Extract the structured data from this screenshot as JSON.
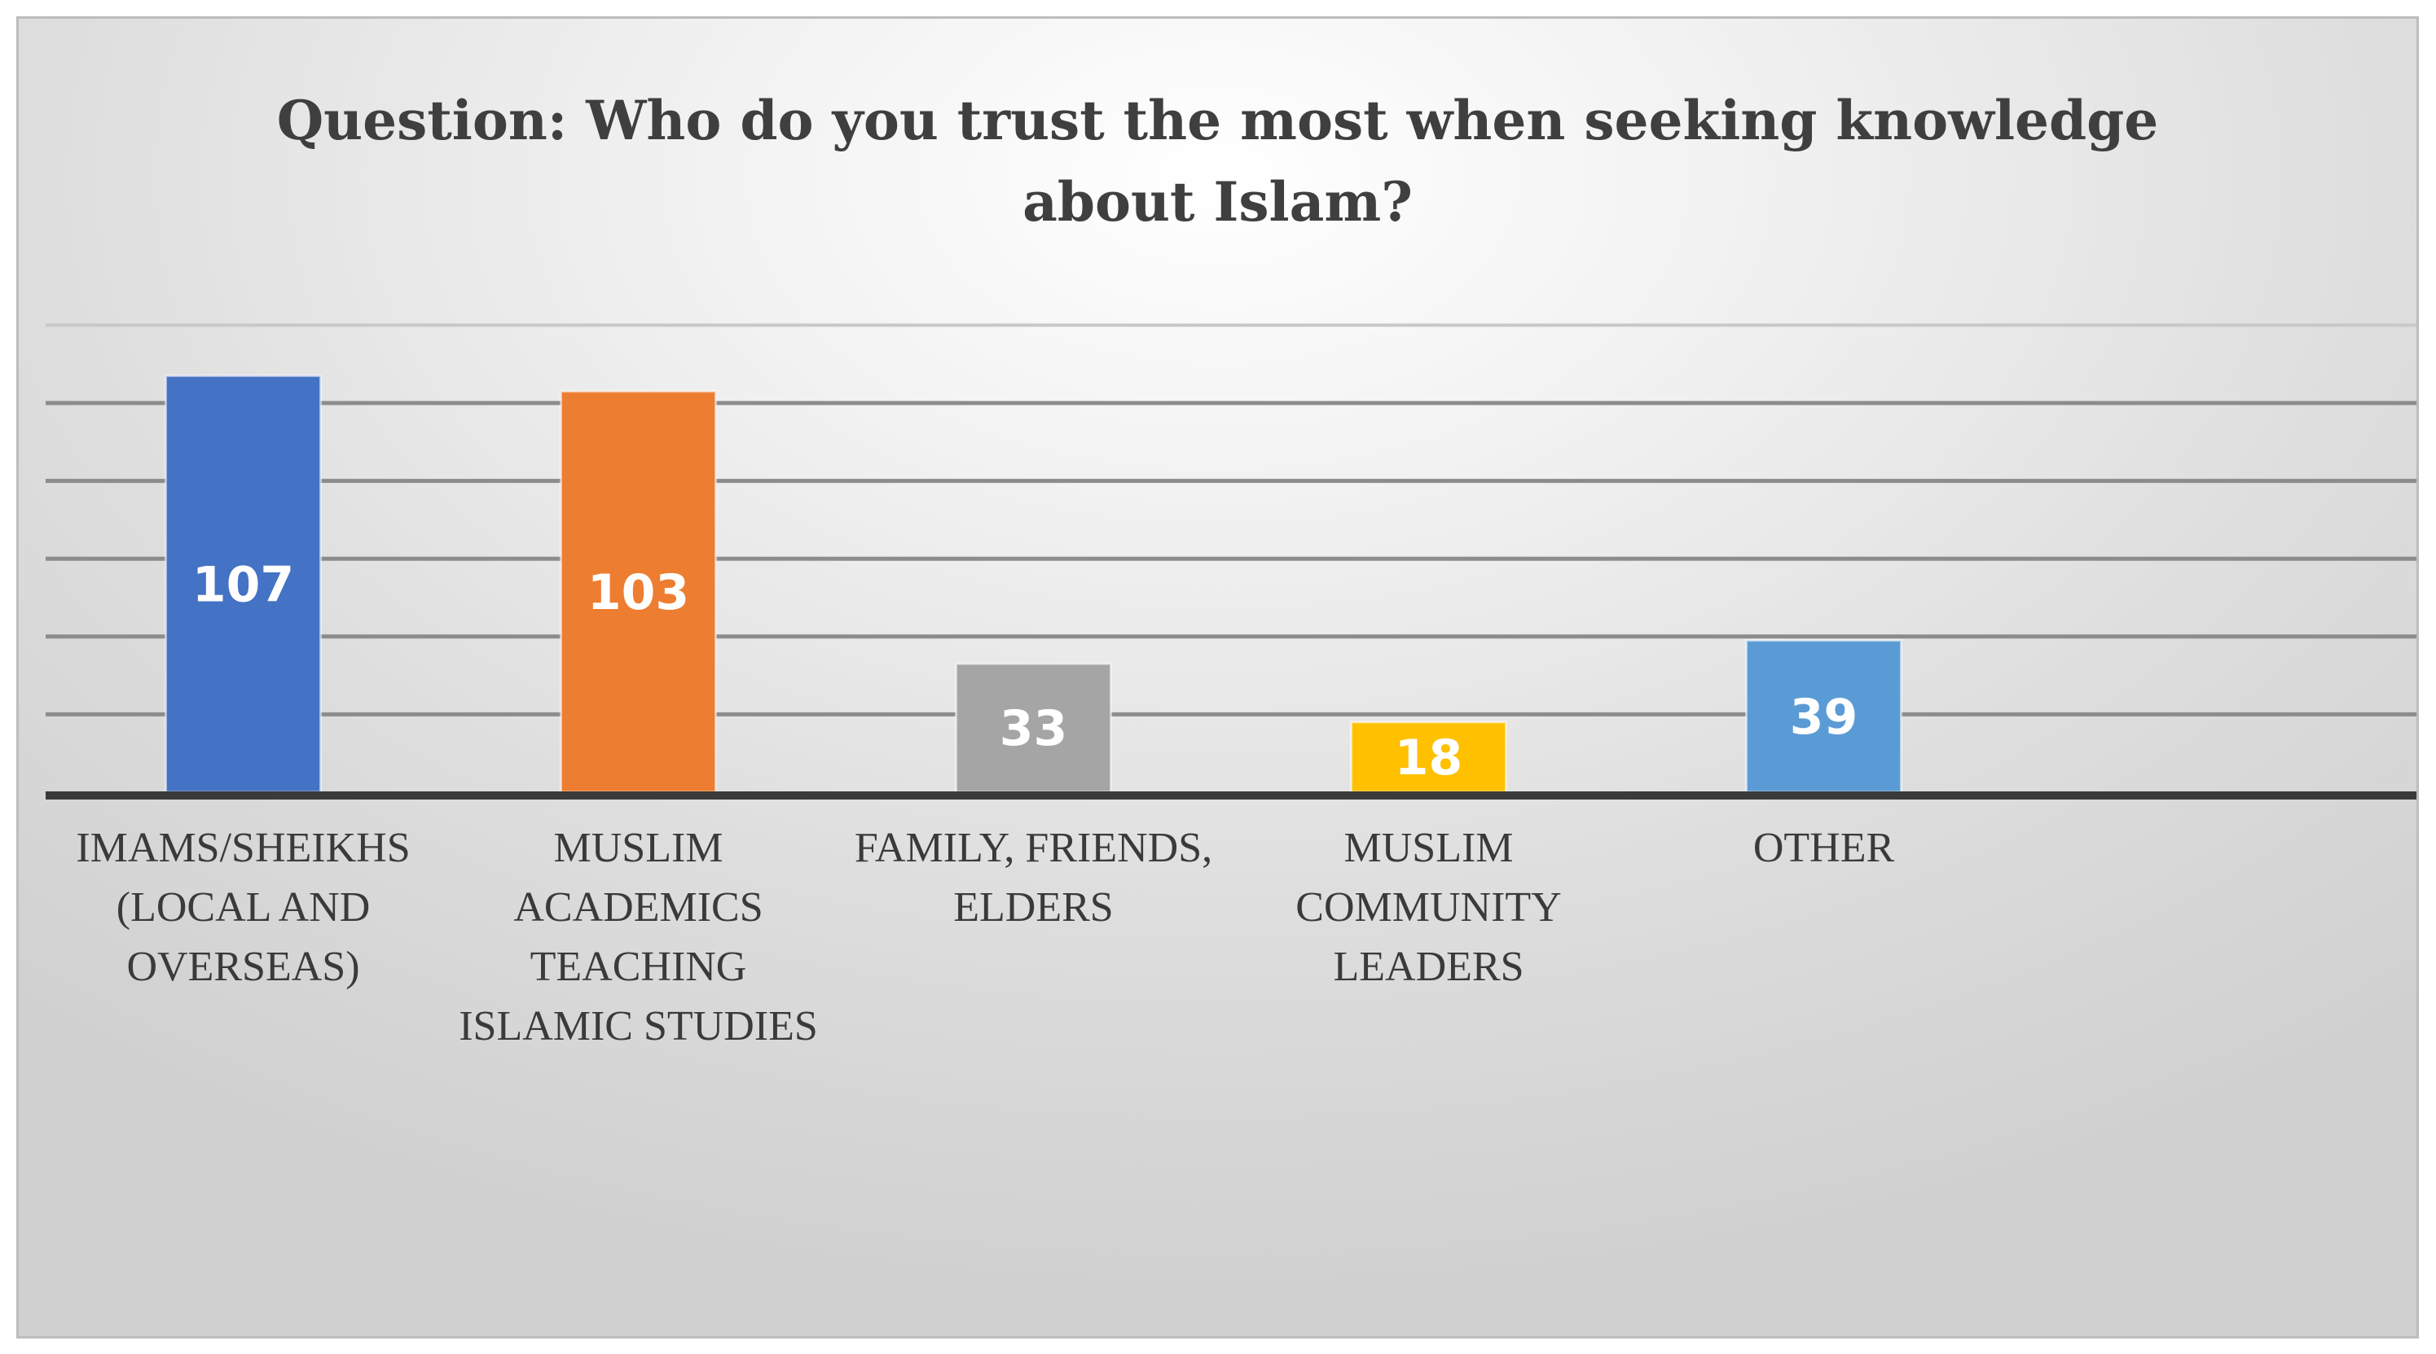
{
  "chart_data": {
    "type": "bar",
    "title": "Question: Who do you trust the most when seeking knowledge about Islam?",
    "title_lines": [
      "Question: Who do you trust the most when seeking knowledge",
      "about Islam?"
    ],
    "categories": [
      "IMAMS/SHEIKHS (LOCAL AND OVERSEAS)",
      "MUSLIM ACADEMICS TEACHING ISLAMIC STUDIES",
      "FAMILY, FRIENDS, ELDERS",
      "MUSLIM COMMUNITY LEADERS",
      "OTHER"
    ],
    "category_lines": [
      [
        "IMAMS/SHEIKHS",
        "(LOCAL AND",
        "OVERSEAS)"
      ],
      [
        "MUSLIM",
        "ACADEMICS",
        "TEACHING",
        "ISLAMIC STUDIES"
      ],
      [
        "FAMILY, FRIENDS,",
        "ELDERS"
      ],
      [
        "MUSLIM",
        "COMMUNITY",
        "LEADERS"
      ],
      [
        "OTHER"
      ]
    ],
    "values": [
      107,
      103,
      33,
      18,
      39
    ],
    "colors": [
      "#4472c4",
      "#ed7d31",
      "#a5a5a5",
      "#ffc000",
      "#5b9bd5"
    ],
    "ylim": [
      0,
      120
    ],
    "gridlines": [
      20,
      40,
      60,
      80,
      100,
      120
    ],
    "grid": true,
    "legend": "none",
    "xlabel": "",
    "ylabel": ""
  }
}
